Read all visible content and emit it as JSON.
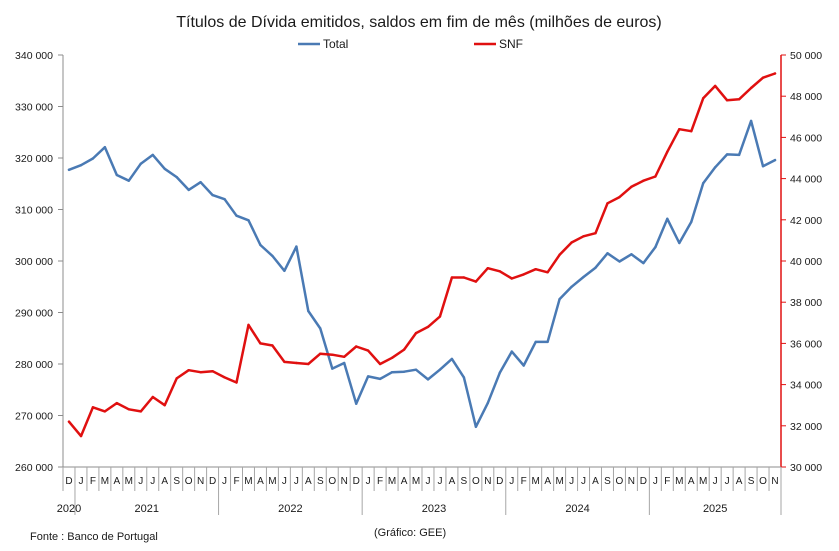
{
  "chart_data": {
    "type": "line",
    "title": "Títulos de Dívida emitidos, saldos em fim de mês  (milhões de euros)",
    "source": "Fonte : Banco de Portugal",
    "credit": "(Gráfico: GEE)",
    "legend_position": "top-center",
    "grid": false,
    "y_left": {
      "lim": [
        260000,
        340000
      ],
      "ticks": [
        "260 000",
        "270 000",
        "280 000",
        "290 000",
        "300 000",
        "310 000",
        "320 000",
        "330 000",
        "340 000"
      ]
    },
    "y_right": {
      "lim": [
        30000,
        50000
      ],
      "ticks": [
        "30 000",
        "32 000",
        "34 000",
        "36 000",
        "38 000",
        "40 000",
        "42 000",
        "44 000",
        "46 000",
        "48 000",
        "50 000"
      ]
    },
    "x": [
      "D",
      "J",
      "F",
      "M",
      "A",
      "M",
      "J",
      "J",
      "A",
      "S",
      "O",
      "N",
      "D",
      "J",
      "F",
      "M",
      "A",
      "M",
      "J",
      "J",
      "A",
      "S",
      "O",
      "N",
      "D",
      "J",
      "F",
      "M",
      "A",
      "M",
      "J",
      "J",
      "A",
      "S",
      "O",
      "N",
      "D",
      "J",
      "F",
      "M",
      "A",
      "M",
      "J",
      "J",
      "A",
      "S",
      "O",
      "N",
      "D",
      "J",
      "F",
      "M",
      "A",
      "M",
      "J",
      "J",
      "A",
      "S",
      "O",
      "N"
    ],
    "years": [
      {
        "label": "2020",
        "start": 0,
        "end": 0
      },
      {
        "label": "2021",
        "start": 1,
        "end": 12
      },
      {
        "label": "2022",
        "start": 13,
        "end": 24
      },
      {
        "label": "2023",
        "start": 25,
        "end": 36
      },
      {
        "label": "2024",
        "start": 37,
        "end": 48
      },
      {
        "label": "2025",
        "start": 49,
        "end": 59
      }
    ],
    "series": [
      {
        "name": "Total",
        "axis": "left",
        "color": "#4a7ab4",
        "values": [
          317700,
          318600,
          319900,
          322100,
          316700,
          315600,
          318900,
          320600,
          317900,
          316300,
          313800,
          315300,
          312800,
          312000,
          308800,
          307900,
          303100,
          301000,
          298100,
          302800,
          290300,
          286900,
          279100,
          280200,
          272300,
          277600,
          277100,
          278400,
          278500,
          278900,
          277000,
          278900,
          281000,
          277400,
          267800,
          272400,
          278300,
          282400,
          279700,
          284300,
          284300,
          292600,
          295000,
          296900,
          298700,
          301500,
          299900,
          301300,
          299600,
          302700,
          308200,
          303500,
          307600,
          315100,
          318200,
          320700,
          320600,
          327200,
          318400,
          319600
        ]
      },
      {
        "name": "SNF",
        "axis": "right",
        "color": "#e01010",
        "values": [
          32200,
          31500,
          32900,
          32700,
          33100,
          32800,
          32700,
          33400,
          33000,
          34300,
          34700,
          34600,
          34650,
          34350,
          34100,
          36900,
          36000,
          35900,
          35100,
          35050,
          35000,
          35500,
          35450,
          35350,
          35850,
          35650,
          35000,
          35300,
          35700,
          36500,
          36800,
          37300,
          39200,
          39200,
          39000,
          39650,
          39500,
          39150,
          39350,
          39600,
          39450,
          40300,
          40900,
          41200,
          41350,
          42800,
          43100,
          43600,
          43900,
          44100,
          45300,
          46400,
          46300,
          47900,
          48500,
          47800,
          47850,
          48400,
          48900,
          49100
        ]
      }
    ]
  }
}
